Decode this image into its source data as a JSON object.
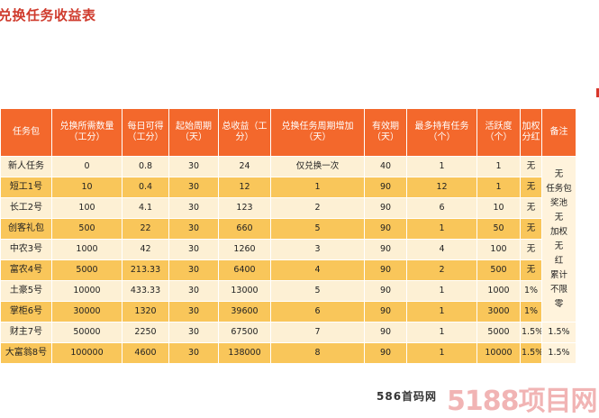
{
  "title": "兑换任务收益表",
  "table": {
    "headers": [
      "任务包",
      "兑换所需数量（工分）",
      "每日可得（工分）",
      "起始周期（天）",
      "总收益（工分）",
      "兑换任务周期增加（天）",
      "有效期（天）",
      "最多持有任务（个）",
      "活跃度（个）",
      "加权分红",
      "备注"
    ],
    "rows": [
      [
        "新人任务",
        "0",
        "0.8",
        "30",
        "24",
        "仅兑换一次",
        "40",
        "1",
        "1",
        "无"
      ],
      [
        "短工1号",
        "10",
        "0.4",
        "30",
        "12",
        "1",
        "90",
        "12",
        "1",
        "无"
      ],
      [
        "长工2号",
        "100",
        "4.1",
        "30",
        "123",
        "2",
        "90",
        "6",
        "10",
        "无"
      ],
      [
        "创客礼包",
        "500",
        "22",
        "30",
        "660",
        "5",
        "90",
        "1",
        "50",
        "无"
      ],
      [
        "中农3号",
        "1000",
        "42",
        "30",
        "1260",
        "3",
        "90",
        "4",
        "100",
        "无"
      ],
      [
        "富农4号",
        "5000",
        "213.33",
        "30",
        "6400",
        "4",
        "90",
        "2",
        "500",
        "无"
      ],
      [
        "土豪5号",
        "10000",
        "433.33",
        "30",
        "13000",
        "5",
        "90",
        "1",
        "1000",
        "1%"
      ],
      [
        "掌柜6号",
        "30000",
        "1320",
        "30",
        "39600",
        "6",
        "90",
        "1",
        "3000",
        "1%"
      ],
      [
        "财主7号",
        "50000",
        "2250",
        "30",
        "67500",
        "7",
        "90",
        "1",
        "5000",
        "1.5%"
      ],
      [
        "大富翁8号",
        "100000",
        "4600",
        "30",
        "138000",
        "8",
        "90",
        "1",
        "10000",
        "1.5%"
      ]
    ],
    "remarks": [
      "无",
      "任务包",
      "奖池",
      "无",
      "加权",
      "无",
      "红",
      "累计",
      "不限",
      "零"
    ],
    "last_remarks": [
      "1.5%",
      "1.5%"
    ]
  },
  "watermark": {
    "text": "586首码网",
    "logo_text": "5188项目网"
  },
  "colors": {
    "title": "#cf3a2c",
    "header_bg": "#f3682c",
    "row_light": "#fdf0d4",
    "row_dark": "#f9c65a"
  }
}
